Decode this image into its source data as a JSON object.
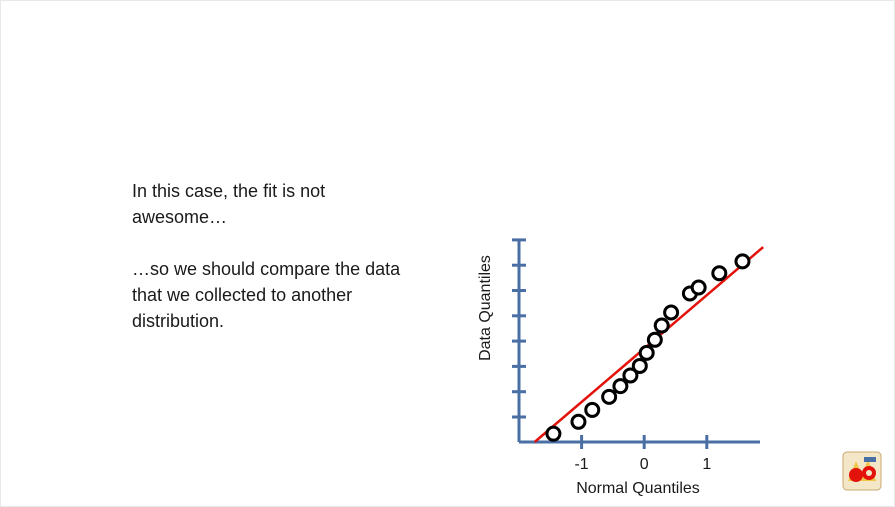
{
  "slide": {
    "paragraph_1": "In this case, the fit is not awesome…",
    "paragraph_2": "…so we should compare the data that we collected to another distribution."
  },
  "colors": {
    "axis": "#4a6fa5",
    "fit_line": "#e3120b",
    "points": "#000000"
  },
  "chart_data": {
    "type": "scatter",
    "title": "",
    "xlabel": "Normal Quantiles",
    "ylabel": "Data Quantiles",
    "xticks": [
      "-1",
      "0",
      "1"
    ],
    "xtick_values": [
      -1,
      0,
      1
    ],
    "y_tick_labels_shown": false,
    "y_tick_count": 8,
    "xlim": [
      -2.0,
      1.85
    ],
    "ylim": [
      0,
      8.5
    ],
    "grid": false,
    "series": [
      {
        "points": [
          {
            "x": -1.45,
            "y": 0.35
          },
          {
            "x": -1.05,
            "y": 0.85
          },
          {
            "x": -0.83,
            "y": 1.35
          },
          {
            "x": -0.56,
            "y": 1.9
          },
          {
            "x": -0.38,
            "y": 2.35
          },
          {
            "x": -0.22,
            "y": 2.8
          },
          {
            "x": -0.07,
            "y": 3.2
          },
          {
            "x": 0.04,
            "y": 3.75
          },
          {
            "x": 0.17,
            "y": 4.3
          },
          {
            "x": 0.28,
            "y": 4.9
          },
          {
            "x": 0.43,
            "y": 5.45
          },
          {
            "x": 0.73,
            "y": 6.25
          },
          {
            "x": 0.87,
            "y": 6.5
          },
          {
            "x": 1.2,
            "y": 7.1
          },
          {
            "x": 1.57,
            "y": 7.6
          }
        ]
      }
    ],
    "fit_line": {
      "x": [
        -1.75,
        1.9
      ],
      "y": [
        0.0,
        8.2
      ]
    }
  }
}
